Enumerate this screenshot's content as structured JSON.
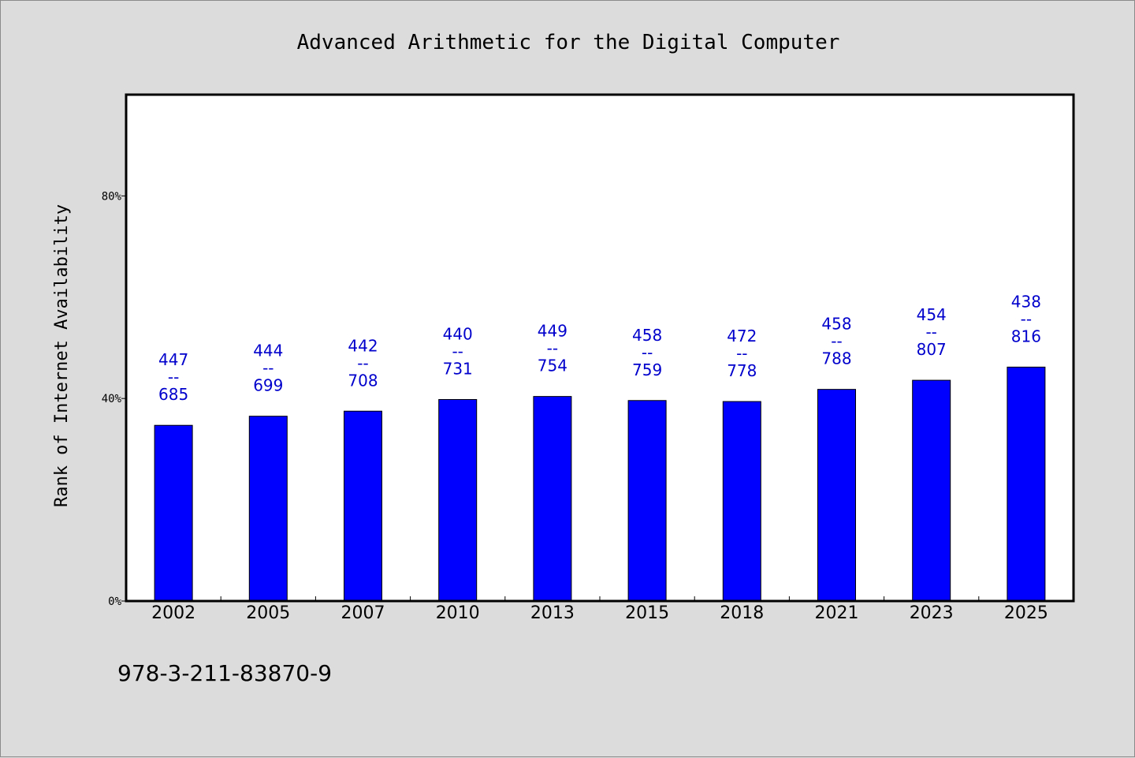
{
  "chart_data": {
    "type": "bar",
    "title": "Advanced Arithmetic for the Digital Computer",
    "xlabel": "",
    "ylabel": "Rank of Internet Availability",
    "ylim": [
      0,
      100
    ],
    "yticks": [
      {
        "value": 0,
        "label": "0%"
      },
      {
        "value": 40,
        "label": "40%"
      },
      {
        "value": 80,
        "label": "80%"
      }
    ],
    "categories": [
      "2002",
      "2005",
      "2007",
      "2010",
      "2013",
      "2015",
      "2018",
      "2021",
      "2023",
      "2025"
    ],
    "values": [
      34.7,
      36.5,
      37.5,
      39.8,
      40.4,
      39.6,
      39.4,
      41.8,
      43.6,
      46.2
    ],
    "data_labels": [
      {
        "top": "447",
        "sep": "--",
        "bottom": "685"
      },
      {
        "top": "444",
        "sep": "--",
        "bottom": "699"
      },
      {
        "top": "442",
        "sep": "--",
        "bottom": "708"
      },
      {
        "top": "440",
        "sep": "--",
        "bottom": "731"
      },
      {
        "top": "449",
        "sep": "--",
        "bottom": "754"
      },
      {
        "top": "458",
        "sep": "--",
        "bottom": "759"
      },
      {
        "top": "472",
        "sep": "--",
        "bottom": "778"
      },
      {
        "top": "458",
        "sep": "--",
        "bottom": "788"
      },
      {
        "top": "454",
        "sep": "--",
        "bottom": "807"
      },
      {
        "top": "438",
        "sep": "--",
        "bottom": "816"
      }
    ],
    "bar_color": "#0000ff",
    "label_color": "#0000cc",
    "grid": false
  },
  "footer": {
    "isbn": "978-3-211-83870-9"
  }
}
